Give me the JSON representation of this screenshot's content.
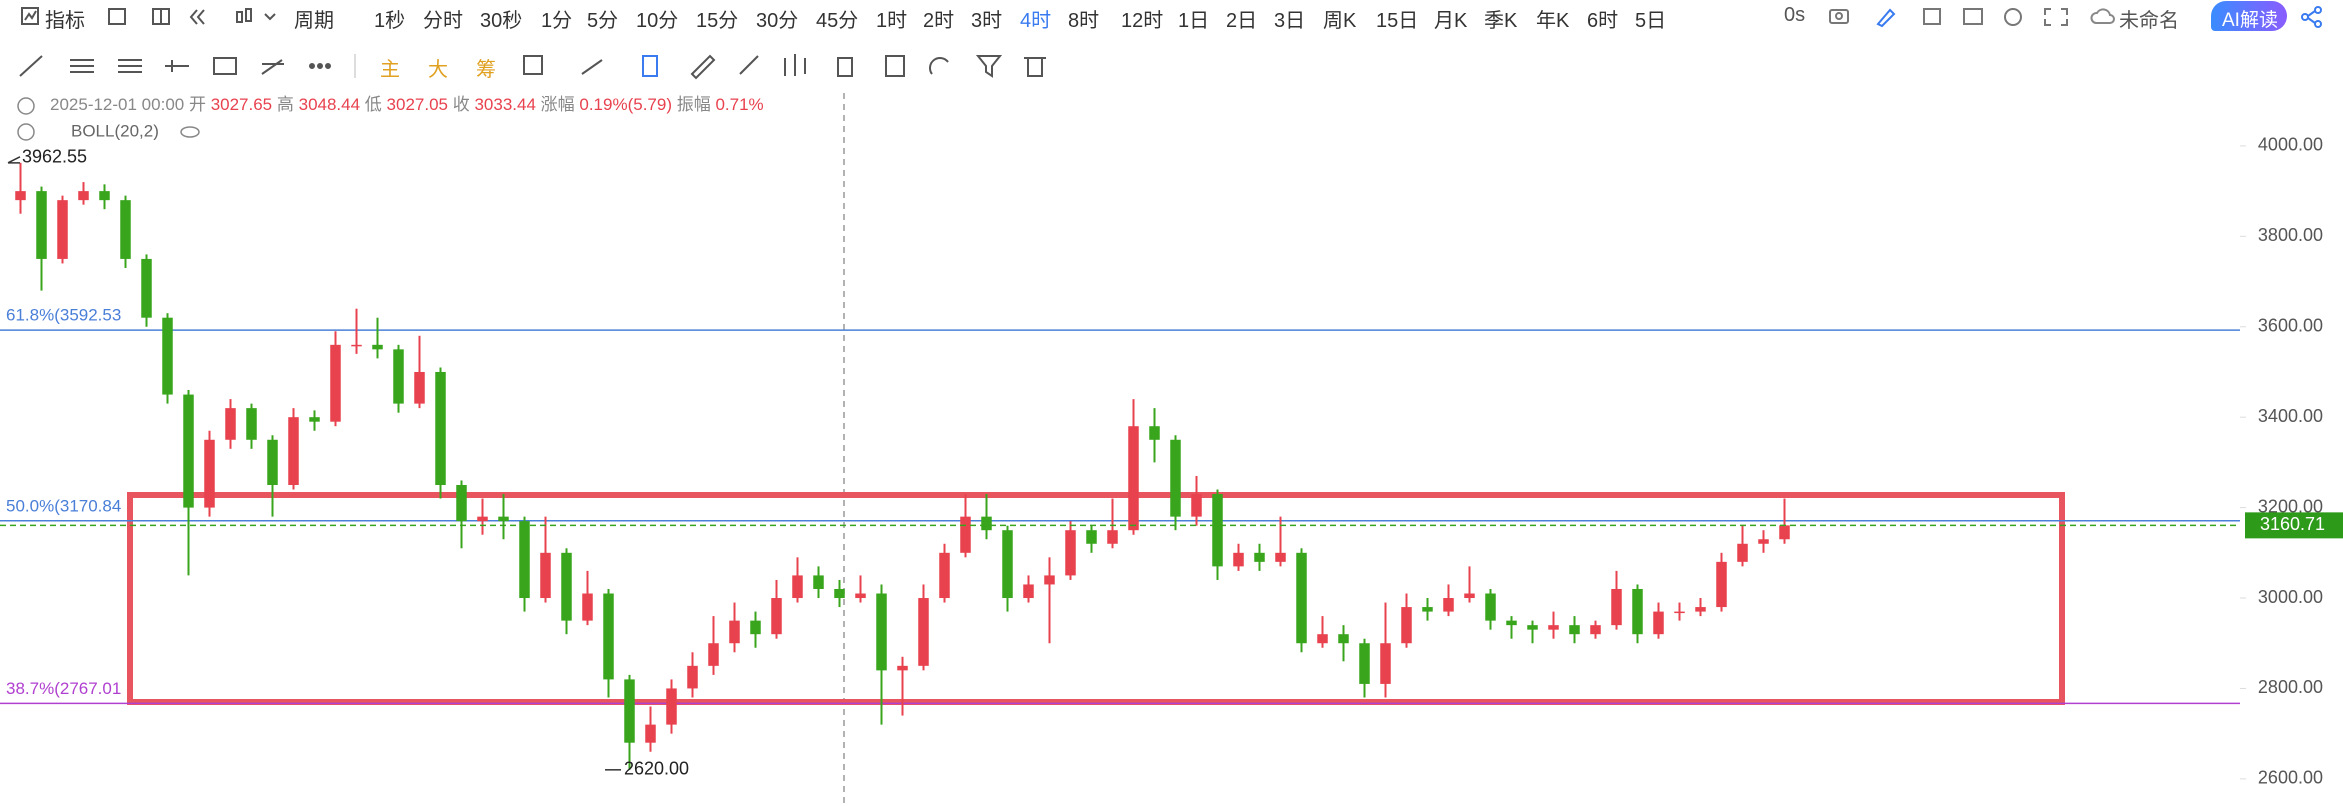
{
  "toolbar": {
    "indicator": "指标",
    "period": "周期",
    "periods": [
      "1秒",
      "分时",
      "30秒",
      "1分",
      "5分",
      "10分",
      "15分",
      "30分",
      "45分",
      "1时",
      "2时",
      "3时",
      "4时",
      "8时",
      "12时",
      "1日",
      "2日",
      "3日",
      "周K",
      "15日",
      "月K",
      "季K",
      "年K",
      "6时",
      "5日"
    ],
    "active_period": "4时",
    "timer": "0s",
    "layout_name": "未命名",
    "ai_button": "AI解读",
    "tools": [
      "主",
      "大",
      "筹"
    ]
  },
  "info": {
    "date": "2025-12-01 00:00",
    "fields": [
      {
        "label": "开",
        "value": "3027.65"
      },
      {
        "label": "高",
        "value": "3048.44"
      },
      {
        "label": "低",
        "value": "3027.05"
      },
      {
        "label": "收",
        "value": "3033.44"
      },
      {
        "label": "涨幅",
        "value": "0.19%(5.79)"
      },
      {
        "label": "振幅",
        "value": "0.71%"
      }
    ],
    "indicator": "BOLL(20,2)"
  },
  "chart_data": {
    "type": "candlestick",
    "up_color": "#e8424f",
    "down_color": "#39a51d",
    "ylim": [
      2540,
      4117
    ],
    "yticks": [
      {
        "value": 2600,
        "label": "2600.00"
      },
      {
        "value": 2800,
        "label": "2800.00"
      },
      {
        "value": 3000,
        "label": "3000.00"
      },
      {
        "value": 3200,
        "label": "3200.00"
      },
      {
        "value": 3400,
        "label": "3400.00"
      },
      {
        "value": 3600,
        "label": "3600.00"
      },
      {
        "value": 3800,
        "label": "3800.00"
      },
      {
        "value": 4000,
        "label": "4000.00"
      }
    ],
    "candles": [
      [
        3880,
        3962.55,
        3850,
        3900
      ],
      [
        3900,
        3910,
        3680,
        3750
      ],
      [
        3750,
        3890,
        3740,
        3880
      ],
      [
        3880,
        3920,
        3870,
        3900
      ],
      [
        3900,
        3915,
        3860,
        3880
      ],
      [
        3880,
        3890,
        3730,
        3750
      ],
      [
        3750,
        3760,
        3600,
        3620
      ],
      [
        3620,
        3630,
        3430,
        3450
      ],
      [
        3450,
        3460,
        3050,
        3200
      ],
      [
        3200,
        3370,
        3180,
        3350
      ],
      [
        3350,
        3440,
        3330,
        3420
      ],
      [
        3420,
        3430,
        3330,
        3350
      ],
      [
        3350,
        3360,
        3180,
        3250
      ],
      [
        3250,
        3420,
        3240,
        3400
      ],
      [
        3400,
        3415,
        3370,
        3390
      ],
      [
        3390,
        3590,
        3380,
        3560
      ],
      [
        3560,
        3640,
        3540,
        3560
      ],
      [
        3560,
        3620,
        3530,
        3550
      ],
      [
        3550,
        3560,
        3410,
        3430
      ],
      [
        3430,
        3580,
        3420,
        3500
      ],
      [
        3500,
        3510,
        3220,
        3250
      ],
      [
        3250,
        3260,
        3110,
        3170
      ],
      [
        3170,
        3220,
        3140,
        3180
      ],
      [
        3180,
        3230,
        3130,
        3170
      ],
      [
        3170,
        3180,
        2970,
        3000
      ],
      [
        3000,
        3180,
        2990,
        3100
      ],
      [
        3100,
        3110,
        2920,
        2950
      ],
      [
        2950,
        3060,
        2940,
        3010
      ],
      [
        3010,
        3020,
        2780,
        2820
      ],
      [
        2820,
        2830,
        2620,
        2680
      ],
      [
        2680,
        2760,
        2660,
        2720
      ],
      [
        2720,
        2820,
        2700,
        2800
      ],
      [
        2800,
        2880,
        2780,
        2850
      ],
      [
        2850,
        2960,
        2830,
        2900
      ],
      [
        2900,
        2990,
        2880,
        2950
      ],
      [
        2950,
        2970,
        2890,
        2920
      ],
      [
        2920,
        3040,
        2910,
        3000
      ],
      [
        3000,
        3090,
        2990,
        3050
      ],
      [
        3050,
        3070,
        3000,
        3020
      ],
      [
        3020,
        3040,
        2980,
        3000
      ],
      [
        3000,
        3050,
        2990,
        3010
      ],
      [
        3010,
        3030,
        2720,
        2840
      ],
      [
        2840,
        2870,
        2740,
        2850
      ],
      [
        2850,
        3030,
        2840,
        3000
      ],
      [
        3000,
        3120,
        2990,
        3100
      ],
      [
        3100,
        3230,
        3090,
        3180
      ],
      [
        3180,
        3230,
        3130,
        3150
      ],
      [
        3150,
        3160,
        2970,
        3000
      ],
      [
        3000,
        3050,
        2990,
        3030
      ],
      [
        3030,
        3090,
        2900,
        3050
      ],
      [
        3050,
        3170,
        3040,
        3150
      ],
      [
        3150,
        3160,
        3100,
        3120
      ],
      [
        3120,
        3220,
        3110,
        3150
      ],
      [
        3150,
        3440,
        3140,
        3380
      ],
      [
        3380,
        3420,
        3300,
        3350
      ],
      [
        3350,
        3360,
        3150,
        3180
      ],
      [
        3180,
        3270,
        3160,
        3230
      ],
      [
        3230,
        3240,
        3040,
        3070
      ],
      [
        3070,
        3120,
        3060,
        3100
      ],
      [
        3100,
        3120,
        3060,
        3080
      ],
      [
        3080,
        3180,
        3070,
        3100
      ],
      [
        3100,
        3110,
        2880,
        2900
      ],
      [
        2900,
        2960,
        2890,
        2920
      ],
      [
        2920,
        2940,
        2860,
        2900
      ],
      [
        2900,
        2910,
        2780,
        2810
      ],
      [
        2810,
        2990,
        2780,
        2900
      ],
      [
        2900,
        3010,
        2890,
        2980
      ],
      [
        2980,
        3000,
        2950,
        2970
      ],
      [
        2970,
        3030,
        2960,
        3000
      ],
      [
        3000,
        3070,
        2990,
        3010
      ],
      [
        3010,
        3020,
        2930,
        2950
      ],
      [
        2950,
        2960,
        2910,
        2940
      ],
      [
        2940,
        2950,
        2900,
        2930
      ],
      [
        2930,
        2970,
        2910,
        2940
      ],
      [
        2940,
        2960,
        2900,
        2920
      ],
      [
        2920,
        2950,
        2910,
        2940
      ],
      [
        2940,
        3060,
        2930,
        3020
      ],
      [
        3020,
        3030,
        2900,
        2920
      ],
      [
        2920,
        2990,
        2910,
        2970
      ],
      [
        2970,
        2990,
        2950,
        2970
      ],
      [
        2970,
        3000,
        2960,
        2980
      ],
      [
        2980,
        3100,
        2970,
        3080
      ],
      [
        3080,
        3160,
        3070,
        3120
      ],
      [
        3120,
        3150,
        3100,
        3130
      ],
      [
        3130,
        3220,
        3120,
        3160.71
      ]
    ],
    "fib_levels": [
      {
        "label": "61.8%(3592.53",
        "value": 3592.53,
        "color": "#4a7fd8"
      },
      {
        "label": "50.0%(3170.84",
        "value": 3170.84,
        "color": "#4a7fd8"
      },
      {
        "label": "38.7%(2767.01",
        "value": 2767.01,
        "color": "#b040d0"
      }
    ],
    "annotations": [
      {
        "label": "3962.55",
        "value": 3962.55
      },
      {
        "label": "2620.00",
        "value": 2620
      }
    ]
  }
}
